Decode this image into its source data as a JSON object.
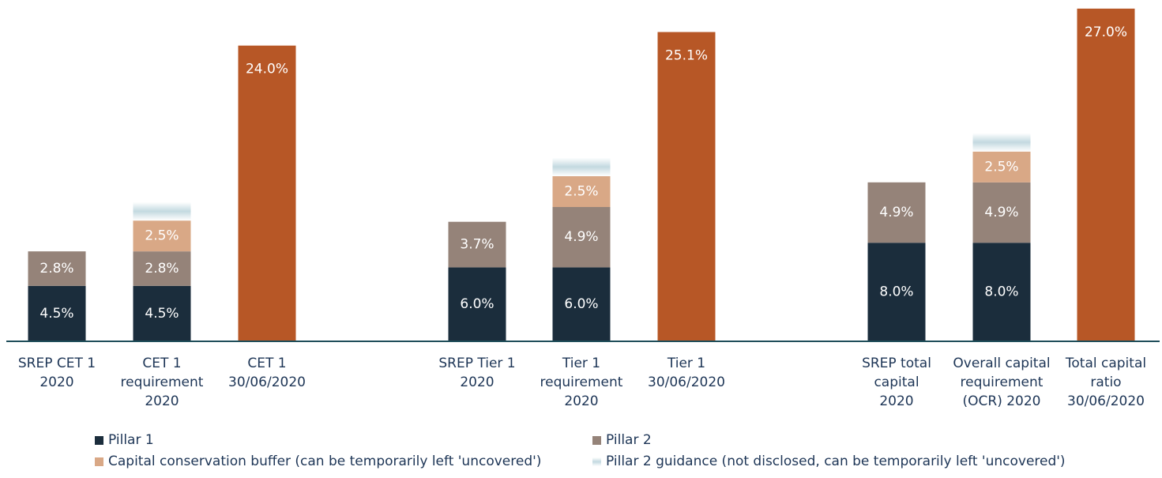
{
  "chart_data": {
    "type": "stacked_bar",
    "categories": [
      "SREP CET 1\n2020",
      "CET 1\nrequirement\n2020",
      "CET 1\n30/06/2020",
      "SREP Tier 1\n2020",
      "Tier 1\nrequirement\n2020",
      "Tier 1\n30/06/2020",
      "SREP total\ncapital\n2020",
      "Overall capital\nrequirement\n(OCR) 2020",
      "Total capital\nratio\n30/06/2020"
    ],
    "series": [
      {
        "name": "Pillar 1",
        "color": "#1b2d3c",
        "values": [
          4.5,
          4.5,
          null,
          6.0,
          6.0,
          null,
          8.0,
          8.0,
          null
        ],
        "value_labels": [
          "4.5%",
          "4.5%",
          null,
          "6.0%",
          "6.0%",
          null,
          "8.0%",
          "8.0%",
          null
        ]
      },
      {
        "name": "Pillar 2",
        "color": "#958379",
        "values": [
          2.8,
          2.8,
          null,
          3.7,
          4.9,
          null,
          4.9,
          4.9,
          null
        ],
        "value_labels": [
          "2.8%",
          "2.8%",
          null,
          "3.7%",
          "4.9%",
          null,
          "4.9%",
          "4.9%",
          null
        ]
      },
      {
        "name": "Capital conservation buffer (can be temporarily left 'uncovered')",
        "color": "#d9a886",
        "values": [
          null,
          2.5,
          null,
          null,
          2.5,
          null,
          null,
          2.5,
          null
        ],
        "value_labels": [
          null,
          "2.5%",
          null,
          null,
          "2.5%",
          null,
          null,
          "2.5%",
          null
        ]
      },
      {
        "name": "Pillar 2 guidance (not disclosed, can be temporarily left 'uncovered')",
        "color": "#c3d9e0",
        "values": [
          null,
          1.5,
          null,
          null,
          1.5,
          null,
          null,
          1.5,
          null
        ]
      },
      {
        "color": "#b75726",
        "values": [
          null,
          null,
          24.0,
          null,
          null,
          25.1,
          null,
          null,
          27.0
        ],
        "value_labels": [
          null,
          null,
          "24.0%",
          null,
          null,
          "25.1%",
          null,
          null,
          "27.0%"
        ]
      }
    ],
    "ylim": [
      0,
      27.7
    ],
    "grid": false
  }
}
